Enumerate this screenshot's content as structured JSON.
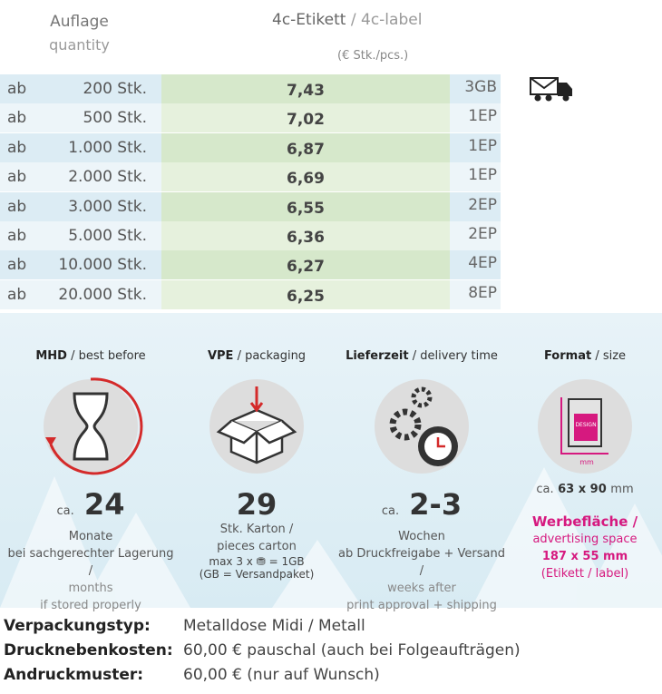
{
  "header": {
    "quantity_de": "Auflage",
    "quantity_en": "quantity",
    "product_de": "4c-Etikett",
    "product_en": "/ 4c-label",
    "unit": "(€ Stk./pcs.)"
  },
  "table": {
    "rows": [
      [
        "ab",
        "200 Stk.",
        "7,43",
        "3GB"
      ],
      [
        "ab",
        "500 Stk.",
        "7,02",
        "1EP"
      ],
      [
        "ab",
        "1.000 Stk.",
        "6,87",
        "1EP"
      ],
      [
        "ab",
        "2.000 Stk.",
        "6,69",
        "1EP"
      ],
      [
        "ab",
        "3.000 Stk.",
        "6,55",
        "2EP"
      ],
      [
        "ab",
        "5.000 Stk.",
        "6,36",
        "2EP"
      ],
      [
        "ab",
        "10.000 Stk.",
        "6,27",
        "4EP"
      ],
      [
        "ab",
        "20.000 Stk.",
        "6,25",
        "8EP"
      ]
    ]
  },
  "info": [
    {
      "title": "MHD",
      "subtitle": "/ best before",
      "prefix": "ca.",
      "value": "24",
      "lines": [
        "Monate",
        "bei sachgerechter Lagerung /",
        "months",
        "if stored properly"
      ]
    },
    {
      "title": "VPE",
      "subtitle": "/ packaging",
      "value": "29",
      "lines": [
        "Stk. Karton /",
        "pieces carton",
        "max 3 x ⛃ = 1GB",
        "(GB = Versandpaket)"
      ]
    },
    {
      "title": "Lieferzeit",
      "subtitle": "/ delivery time",
      "prefix": "ca.",
      "value": "2-3",
      "lines": [
        "Wochen",
        "ab Druckfreigabe + Versand /",
        "weeks after",
        "print approval + shipping"
      ]
    },
    {
      "title": "Format",
      "subtitle": "/ size",
      "prefix": "ca.",
      "value": "63 x 90",
      "unit": "mm",
      "lines": [
        "Werbefläche /",
        "advertising space",
        "187 x 55 mm",
        "(Etikett / label)"
      ],
      "icon_text": [
        "DESIGN",
        "mm"
      ]
    }
  ],
  "specs": [
    [
      "Verpackungstyp:",
      "Metalldose Midi / Metall"
    ],
    [
      "Drucknebenkosten:",
      "60,00 € pauschal (auch bei Folgeaufträgen)"
    ],
    [
      "Andruckmuster:",
      "60,00 € (nur auf Wunsch)"
    ]
  ]
}
